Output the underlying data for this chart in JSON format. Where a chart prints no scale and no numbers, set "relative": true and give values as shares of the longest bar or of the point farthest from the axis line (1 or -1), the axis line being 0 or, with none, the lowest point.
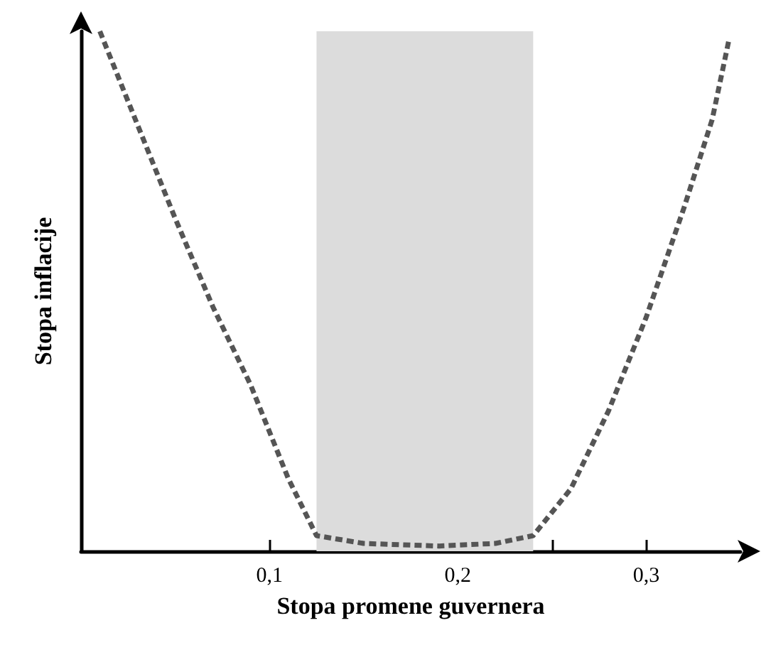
{
  "chart_data": {
    "type": "line",
    "relative": true,
    "xlabel": "Stopa promene guvernera",
    "ylabel": "Stopa inflacije",
    "x": [
      0.01,
      0.03,
      0.05,
      0.07,
      0.09,
      0.11,
      0.125,
      0.15,
      0.19,
      0.22,
      0.24,
      0.26,
      0.28,
      0.3,
      0.32,
      0.335,
      0.344
    ],
    "series": [
      {
        "color": "#555555",
        "values": [
          1.0,
          0.82,
          0.64,
          0.47,
          0.32,
          0.14,
          0.03,
          0.015,
          0.01,
          0.015,
          0.03,
          0.12,
          0.27,
          0.45,
          0.66,
          0.83,
          0.985
        ]
      }
    ],
    "line_style": "dashed",
    "marker": "none",
    "grid": false,
    "xlim": [
      0,
      0.35
    ],
    "xticks": [
      {
        "value": 0.1,
        "label": "0,1"
      },
      {
        "value": 0.15,
        "label": null
      },
      {
        "value": 0.2,
        "label": "0,2"
      },
      {
        "value": 0.25,
        "label": null
      },
      {
        "value": 0.3,
        "label": "0,3"
      }
    ],
    "bands": [
      {
        "axis": "x",
        "from": 0.125,
        "to": 0.24,
        "color": "#dcdcdc"
      }
    ]
  }
}
